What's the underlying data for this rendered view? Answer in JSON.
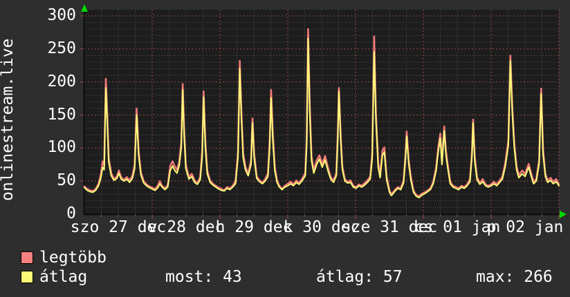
{
  "title": "onlinestream.live",
  "legend": {
    "items": [
      {
        "label": "legtöbb",
        "color": "#f58080"
      },
      {
        "label": "átlag",
        "color": "#fafa78"
      }
    ]
  },
  "footer": {
    "stats": [
      {
        "text": "most: 43",
        "label": "most",
        "value": 43
      },
      {
        "text": "átlag: 57",
        "label": "átlag",
        "value": 57
      },
      {
        "text": "max: 266",
        "label": "max",
        "value": 266
      }
    ]
  },
  "chart_data": {
    "type": "line",
    "title": "onlinestream.live",
    "xlabel": "",
    "ylabel": "",
    "ylim": [
      0,
      300
    ],
    "y_ticks": [
      0,
      50,
      100,
      150,
      200,
      250,
      300
    ],
    "y_minor_step": 10,
    "x_hours": [
      0,
      168
    ],
    "x_minor_step_hours": 6,
    "x_major_step_hours": 24,
    "x_labels": [
      {
        "text": "szo 27 dec",
        "t": 12
      },
      {
        "text": "v 28 dec",
        "t": 36
      },
      {
        "text": "h 29 dec",
        "t": 60
      },
      {
        "text": "k 30 dec",
        "t": 84
      },
      {
        "text": "sze 31 dec",
        "t": 108
      },
      {
        "text": "cs 01 jan",
        "t": 132
      },
      {
        "text": "p 02 jan",
        "t": 156
      }
    ],
    "grid_on": true,
    "legend_position": "bottom-left",
    "colors": {
      "outer_bg": "#2e2e2e",
      "plot_bg": "#1d1d1d",
      "minor_grid": "#4f4f4f",
      "major_grid": "#9c4b4b",
      "axis": "#0a0a0a",
      "arrow": "#00d800",
      "text": "#ffffff"
    },
    "stats": {
      "most": 43,
      "atlag": 57,
      "max": 266
    },
    "t": [
      0,
      1,
      2,
      3,
      4,
      5,
      5.8,
      6.5,
      7,
      7.6,
      8.1,
      8.6,
      9.5,
      10.5,
      11.5,
      12.2,
      13,
      14,
      15,
      16,
      17,
      17.8,
      18.5,
      19.2,
      20,
      21,
      22,
      23,
      24,
      25,
      26,
      26.7,
      27.5,
      28.5,
      29.5,
      30.4,
      31.2,
      32,
      32.8,
      33.6,
      34.3,
      34.8,
      35.3,
      35.9,
      37,
      38,
      39,
      40,
      41,
      41.7,
      42.2,
      42.8,
      43.5,
      44.5,
      45.5,
      46.5,
      47.5,
      48.5,
      49.5,
      50.5,
      51.5,
      52.5,
      53.5,
      54.4,
      55,
      55.6,
      56.2,
      57,
      58,
      59,
      59.5,
      60.1,
      61,
      62,
      63,
      64,
      65,
      65.6,
      66.1,
      66.7,
      67.4,
      68.2,
      69,
      70,
      71,
      72,
      73,
      74,
      75,
      76,
      77,
      78.2,
      78.7,
      79.2,
      79.8,
      80.4,
      81.2,
      82.2,
      83.2,
      84.2,
      85.2,
      86.2,
      87.2,
      88.2,
      89.2,
      89.7,
      90.1,
      90.7,
      91.3,
      92.2,
      93.2,
      94.2,
      95.2,
      96.2,
      97.2,
      98.2,
      99.2,
      100.2,
      101.2,
      101.9,
      102.6,
      103.2,
      104,
      104.7,
      105.5,
      106.2,
      107,
      108,
      108.7,
      110,
      111,
      112,
      113,
      113.7,
      114.1,
      114.8,
      115.6,
      116.5,
      117.5,
      118.5,
      119.5,
      120.5,
      121.5,
      122.5,
      123.5,
      124.5,
      125.3,
      126,
      126.6,
      127.4,
      128,
      128.7,
      129.5,
      130.5,
      131.5,
      132.5,
      133.5,
      134.5,
      135.5,
      136.5,
      137.2,
      137.6,
      138.2,
      139,
      140,
      141,
      142,
      143,
      144,
      145,
      146,
      147,
      148,
      149,
      150.1,
      150.8,
      151.5,
      152.2,
      153,
      153.8,
      155,
      156,
      157.3,
      158.2,
      159,
      160,
      161,
      161.7,
      162.4,
      163.2,
      164,
      165,
      166,
      167,
      168
    ],
    "series": [
      {
        "name": "legtöbb",
        "color": "#f07878",
        "values": [
          42,
          38,
          36,
          35,
          38,
          46,
          60,
          80,
          74,
          205,
          150,
          85,
          62,
          53,
          57,
          66,
          56,
          52,
          56,
          51,
          58,
          75,
          160,
          96,
          63,
          50,
          45,
          42,
          40,
          38,
          43,
          50,
          43,
          39,
          44,
          73,
          80,
          72,
          67,
          80,
          110,
          197,
          130,
          75,
          56,
          61,
          51,
          47,
          56,
          95,
          186,
          112,
          66,
          51,
          46,
          43,
          40,
          38,
          36,
          41,
          39,
          43,
          50,
          95,
          232,
          155,
          92,
          72,
          61,
          82,
          145,
          92,
          57,
          51,
          48,
          53,
          62,
          112,
          188,
          122,
          72,
          51,
          43,
          38,
          43,
          46,
          49,
          45,
          51,
          47,
          53,
          62,
          115,
          280,
          165,
          88,
          66,
          81,
          89,
          76,
          88,
          71,
          56,
          51,
          62,
          122,
          191,
          123,
          73,
          53,
          49,
          51,
          43,
          41,
          45,
          43,
          47,
          51,
          57,
          92,
          269,
          155,
          78,
          59,
          96,
          101,
          57,
          36,
          30,
          37,
          41,
          39,
          51,
          92,
          125,
          82,
          56,
          36,
          29,
          27,
          31,
          33,
          36,
          39,
          49,
          70,
          102,
          122,
          80,
          133,
          96,
          73,
          49,
          43,
          41,
          39,
          43,
          41,
          45,
          53,
          92,
          143,
          87,
          56,
          47,
          53,
          45,
          43,
          45,
          49,
          45,
          51,
          57,
          77,
          112,
          240,
          162,
          107,
          72,
          59,
          66,
          61,
          76,
          61,
          49,
          53,
          82,
          190,
          97,
          61,
          51,
          55,
          49,
          53,
          45
        ]
      },
      {
        "name": "átlag",
        "color": "#fafa78",
        "values": [
          40,
          36,
          34,
          33,
          36,
          43,
          54,
          71,
          67,
          191,
          138,
          79,
          58,
          51,
          54,
          62,
          53,
          50,
          53,
          48,
          54,
          69,
          150,
          89,
          59,
          47,
          43,
          40,
          38,
          36,
          40,
          46,
          41,
          37,
          41,
          66,
          73,
          66,
          62,
          74,
          101,
          188,
          120,
          69,
          53,
          57,
          48,
          45,
          52,
          87,
          177,
          102,
          61,
          48,
          44,
          41,
          38,
          36,
          35,
          39,
          37,
          41,
          46,
          86,
          220,
          144,
          85,
          67,
          58,
          75,
          138,
          85,
          54,
          49,
          46,
          50,
          57,
          102,
          176,
          111,
          66,
          48,
          41,
          37,
          41,
          43,
          46,
          43,
          48,
          45,
          50,
          58,
          104,
          266,
          152,
          81,
          62,
          75,
          83,
          71,
          82,
          66,
          53,
          48,
          58,
          113,
          186,
          113,
          68,
          50,
          47,
          48,
          41,
          39,
          43,
          41,
          44,
          48,
          53,
          84,
          246,
          142,
          71,
          55,
          89,
          94,
          52,
          33,
          28,
          35,
          39,
          37,
          47,
          85,
          118,
          76,
          51,
          33,
          27,
          25,
          29,
          31,
          34,
          37,
          46,
          65,
          95,
          115,
          75,
          126,
          89,
          68,
          46,
          41,
          39,
          37,
          41,
          39,
          43,
          49,
          86,
          138,
          80,
          52,
          45,
          49,
          43,
          41,
          43,
          46,
          43,
          48,
          53,
          72,
          104,
          232,
          152,
          100,
          67,
          55,
          61,
          57,
          71,
          57,
          46,
          50,
          76,
          182,
          90,
          57,
          48,
          51,
          46,
          49,
          43
        ]
      }
    ]
  }
}
